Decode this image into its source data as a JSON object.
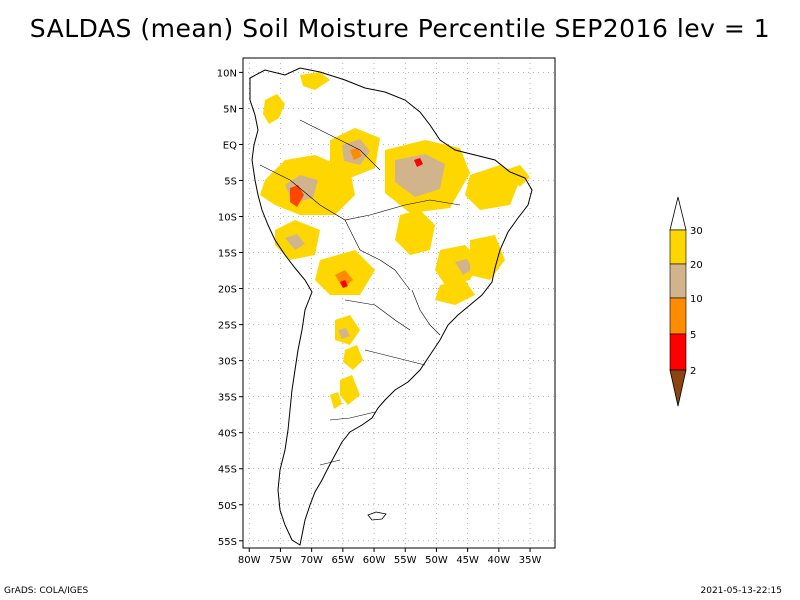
{
  "title": "SALDAS (mean) Soil Moisture Percentile SEP2016 lev = 1",
  "map": {
    "region": "South America",
    "lon_range": [
      -81,
      -31
    ],
    "lat_range": [
      -56,
      12
    ],
    "lat_labels": [
      "10N",
      "5N",
      "EQ",
      "5S",
      "10S",
      "15S",
      "20S",
      "25S",
      "30S",
      "35S",
      "40S",
      "45S",
      "50S",
      "55S"
    ],
    "lat_values": [
      10,
      5,
      0,
      -5,
      -10,
      -15,
      -20,
      -25,
      -30,
      -35,
      -40,
      -45,
      -50,
      -55
    ],
    "lon_labels": [
      "80W",
      "75W",
      "70W",
      "65W",
      "60W",
      "55W",
      "50W",
      "45W",
      "40W",
      "35W"
    ],
    "lon_values": [
      -80,
      -75,
      -70,
      -65,
      -60,
      -55,
      -50,
      -45,
      -40,
      -35
    ],
    "grid": true
  },
  "colorbar": {
    "levels": [
      "2",
      "5",
      "10",
      "20",
      "30"
    ],
    "colors": {
      "below_2": "#8b4513",
      "2_5": "#ff0000",
      "5_10": "#ff8c00",
      "10_20": "#d2b48c",
      "20_30": "#ffd700",
      "above_30": "#ffffff"
    }
  },
  "footer": {
    "left": "GrADS: COLA/IGES",
    "right": "2021-05-13-22:15"
  }
}
